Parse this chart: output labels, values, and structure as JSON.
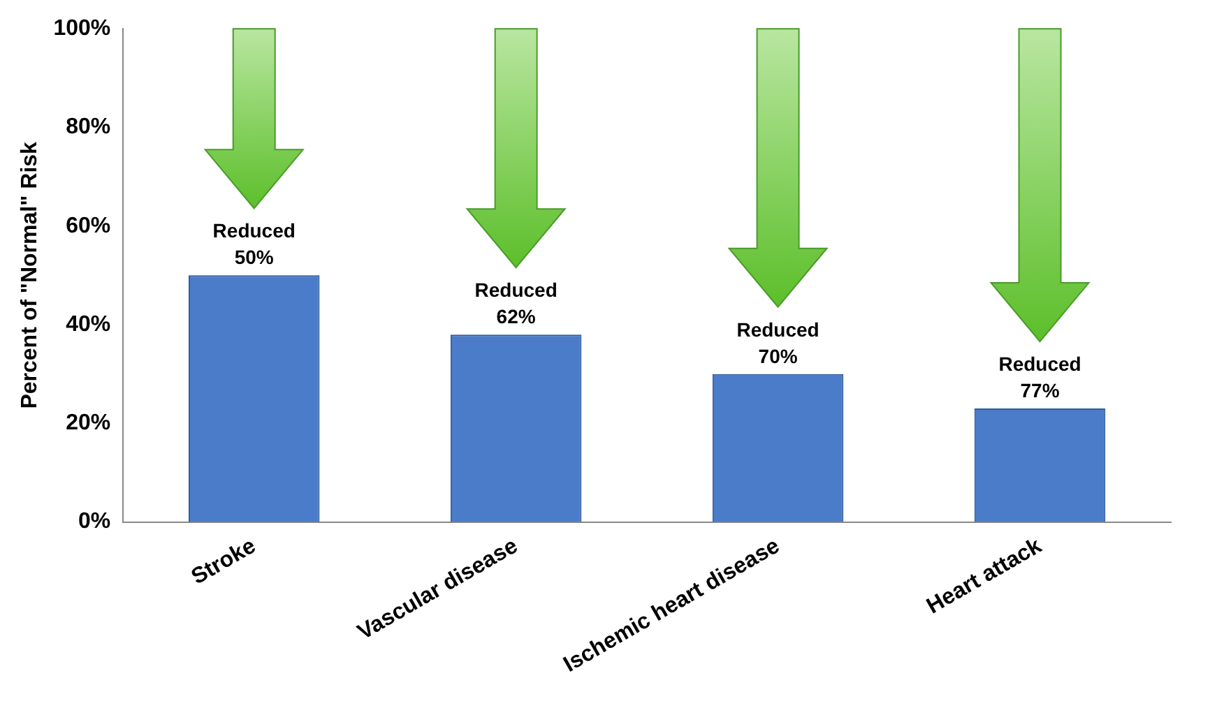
{
  "chart_data": {
    "type": "bar",
    "ylabel": "Percent of \"Normal\" Risk",
    "categories": [
      "Stroke",
      "Vascular disease",
      "Ischemic heart disease",
      "Heart attack"
    ],
    "values": [
      50,
      38,
      30,
      23
    ],
    "color": "#4a7cc9",
    "ylim": [
      0,
      100
    ],
    "yticks": [
      {
        "value": 0,
        "label": "0%"
      },
      {
        "value": 20,
        "label": "20%"
      },
      {
        "value": 40,
        "label": "40%"
      },
      {
        "value": 60,
        "label": "60%"
      },
      {
        "value": 80,
        "label": "80%"
      },
      {
        "value": 100,
        "label": "100%"
      }
    ],
    "grid": false,
    "legend": false,
    "annotations": [
      {
        "text": "Reduced 50%",
        "x": "Stroke",
        "y": 50
      },
      {
        "text": "Reduced 62%",
        "x": "Vascular disease",
        "y": 38
      },
      {
        "text": "Reduced 70%",
        "x": "Ischemic heart disease",
        "y": 30
      },
      {
        "text": "Reduced 77%",
        "x": "Heart attack",
        "y": 23
      }
    ]
  }
}
